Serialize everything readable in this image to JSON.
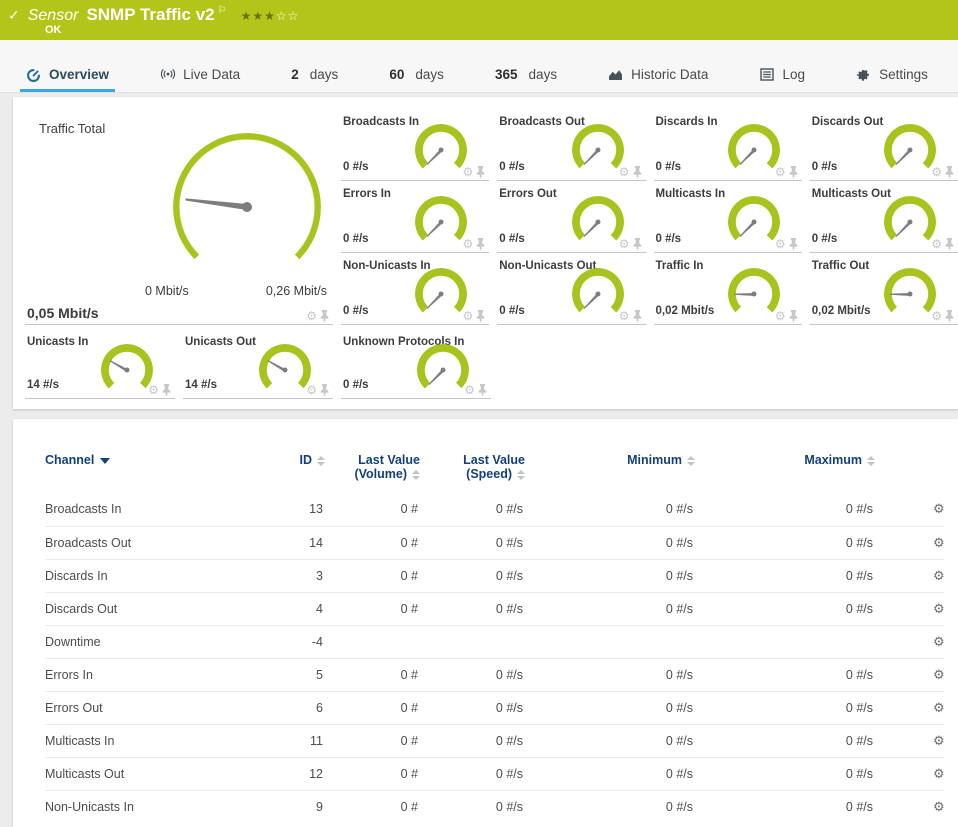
{
  "colors": {
    "status_green": "#b4c519",
    "gauge_green": "#a9c31e",
    "tab_underline": "#37a9e2",
    "needle_gray": "#7d7d7d",
    "table_header_navy": "#14407a"
  },
  "header": {
    "check_icon": "✓",
    "type_label": "Sensor",
    "title": "SNMP Traffic v2",
    "flag_icon": "⚐",
    "status": "OK",
    "rating_filled": 3,
    "rating_total": 5
  },
  "tabs": [
    {
      "label": "Overview",
      "icon": "gauge-icon",
      "active": true
    },
    {
      "label": "Live Data",
      "icon": "live-data-icon"
    },
    {
      "strong": "2",
      "label": "days"
    },
    {
      "strong": "60",
      "label": "days"
    },
    {
      "strong": "365",
      "label": "days"
    },
    {
      "label": "Historic Data",
      "icon": "historic-data-icon"
    },
    {
      "label": "Log",
      "icon": "log-icon"
    },
    {
      "label": "Settings",
      "icon": "settings-icon"
    }
  ],
  "gauges": {
    "main": {
      "title": "Traffic Total",
      "value": "0,05 Mbit/s",
      "min_label": "0 Mbit/s",
      "max_label": "0,26 Mbit/s",
      "needle_deg": 187
    },
    "minis": [
      {
        "title": "Broadcasts In",
        "value": "0 #/s",
        "needle_deg": 135
      },
      {
        "title": "Broadcasts Out",
        "value": "0 #/s",
        "needle_deg": 135
      },
      {
        "title": "Discards In",
        "value": "0 #/s",
        "needle_deg": 135
      },
      {
        "title": "Discards Out",
        "value": "0 #/s",
        "needle_deg": 135
      },
      {
        "title": "Errors In",
        "value": "0 #/s",
        "needle_deg": 135
      },
      {
        "title": "Errors Out",
        "value": "0 #/s",
        "needle_deg": 135
      },
      {
        "title": "Multicasts In",
        "value": "0 #/s",
        "needle_deg": 135
      },
      {
        "title": "Multicasts Out",
        "value": "0 #/s",
        "needle_deg": 135
      },
      {
        "title": "Non-Unicasts In",
        "value": "0 #/s",
        "needle_deg": 135
      },
      {
        "title": "Non-Unicasts Out",
        "value": "0 #/s",
        "needle_deg": 135
      },
      {
        "title": "Traffic In",
        "value": "0,02 Mbit/s",
        "needle_deg": 181
      },
      {
        "title": "Traffic Out",
        "value": "0,02 Mbit/s",
        "needle_deg": 181
      }
    ],
    "row4": [
      {
        "title": "Unicasts In",
        "value": "14 #/s",
        "needle_deg": 210
      },
      {
        "title": "Unicasts Out",
        "value": "14 #/s",
        "needle_deg": 210
      },
      {
        "title": "Unknown Protocols In",
        "value": "0 #/s",
        "needle_deg": 135
      }
    ]
  },
  "table": {
    "columns": [
      {
        "label": "Channel",
        "sorted": true
      },
      {
        "label": "ID"
      },
      {
        "label": "Last Value",
        "sub": "(Volume)"
      },
      {
        "label": "Last Value",
        "sub": "(Speed)"
      },
      {
        "label": "Minimum"
      },
      {
        "label": "Maximum"
      }
    ],
    "rows": [
      {
        "channel": "Broadcasts In",
        "id": "13",
        "volume": "0 #",
        "speed": "0 #/s",
        "minimum": "0 #/s",
        "maximum": "0 #/s"
      },
      {
        "channel": "Broadcasts Out",
        "id": "14",
        "volume": "0 #",
        "speed": "0 #/s",
        "minimum": "0 #/s",
        "maximum": "0 #/s"
      },
      {
        "channel": "Discards In",
        "id": "3",
        "volume": "0 #",
        "speed": "0 #/s",
        "minimum": "0 #/s",
        "maximum": "0 #/s"
      },
      {
        "channel": "Discards Out",
        "id": "4",
        "volume": "0 #",
        "speed": "0 #/s",
        "minimum": "0 #/s",
        "maximum": "0 #/s"
      },
      {
        "channel": "Downtime",
        "id": "-4",
        "volume": "",
        "speed": "",
        "minimum": "",
        "maximum": ""
      },
      {
        "channel": "Errors In",
        "id": "5",
        "volume": "0 #",
        "speed": "0 #/s",
        "minimum": "0 #/s",
        "maximum": "0 #/s"
      },
      {
        "channel": "Errors Out",
        "id": "6",
        "volume": "0 #",
        "speed": "0 #/s",
        "minimum": "0 #/s",
        "maximum": "0 #/s"
      },
      {
        "channel": "Multicasts In",
        "id": "11",
        "volume": "0 #",
        "speed": "0 #/s",
        "minimum": "0 #/s",
        "maximum": "0 #/s"
      },
      {
        "channel": "Multicasts Out",
        "id": "12",
        "volume": "0 #",
        "speed": "0 #/s",
        "minimum": "0 #/s",
        "maximum": "0 #/s"
      },
      {
        "channel": "Non-Unicasts In",
        "id": "9",
        "volume": "0 #",
        "speed": "0 #/s",
        "minimum": "0 #/s",
        "maximum": "0 #/s"
      }
    ]
  }
}
